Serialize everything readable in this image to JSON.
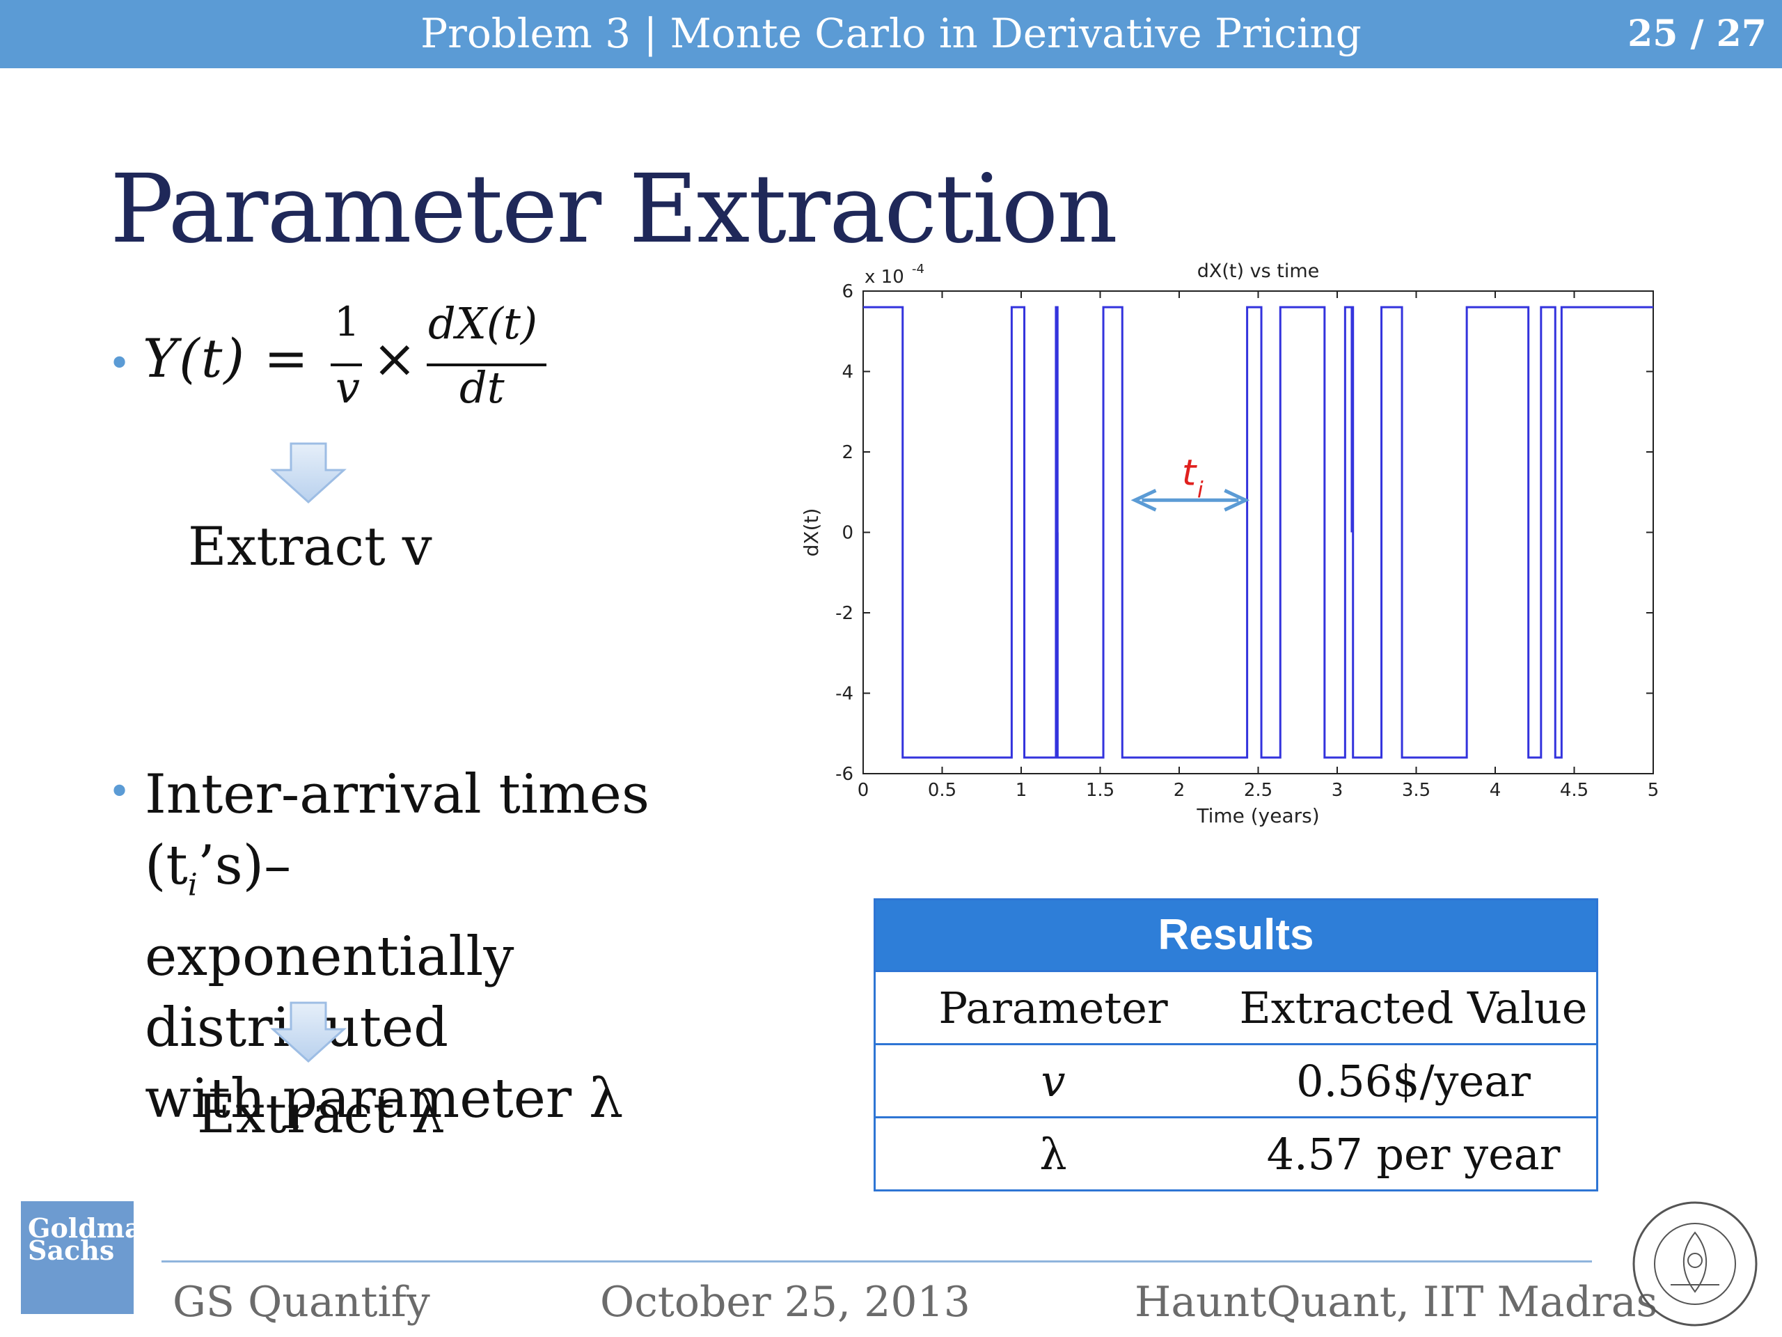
{
  "header": {
    "title": "Problem 3 | Monte Carlo in Derivative Pricing",
    "page": "25 / 27"
  },
  "slide_title": "Parameter Extraction",
  "bullets": [
    {
      "equation": {
        "lhs": "Y(t) =",
        "num1": "1",
        "den1": "v",
        "times": "×",
        "num2": "dX(t)",
        "den2": "dt"
      },
      "result": "Extract v"
    },
    {
      "text_line1": "Inter-arrival times (t",
      "text_sub": "i",
      "text_line1_end": "’s)–",
      "text_line2": "exponentially distributed",
      "text_line3": "with parameter λ",
      "result": "Extract λ"
    }
  ],
  "chart_data": {
    "type": "line",
    "title": "dX(t) vs time",
    "xlabel": "Time (years)",
    "ylabel": "dX(t)",
    "y_scale_label": "x 10",
    "y_scale_exp": "-4",
    "xlim": [
      0,
      5
    ],
    "ylim": [
      -6,
      6
    ],
    "xticks": [
      "0",
      "0.5",
      "1",
      "1.5",
      "2",
      "2.5",
      "3",
      "3.5",
      "4",
      "4.5",
      "5"
    ],
    "yticks": [
      "-6",
      "-4",
      "-2",
      "0",
      "2",
      "4",
      "6"
    ],
    "annotation": {
      "label": "t",
      "sub": "i"
    },
    "series": [
      {
        "x": [
          0,
          0.25,
          0.25,
          0.94,
          0.94,
          1.02,
          1.02,
          1.22,
          1.22,
          1.23,
          1.23,
          1.52,
          1.52,
          1.64,
          1.64,
          2.43,
          2.43,
          2.52,
          2.52,
          2.64,
          2.64,
          2.92,
          2.92,
          3.05,
          3.05,
          3.1,
          3.1,
          3.28,
          3.28,
          3.41,
          3.41,
          3.82,
          3.82,
          4.21,
          4.21,
          4.29,
          4.29,
          4.38,
          4.38,
          4.42,
          4.42,
          5
        ],
        "y": [
          5.6,
          5.6,
          -5.6,
          -5.6,
          5.6,
          5.6,
          -5.6,
          -5.6,
          5.6,
          5.6,
          -5.6,
          -5.6,
          5.6,
          5.6,
          -5.6,
          -5.6,
          5.6,
          5.6,
          -5.6,
          -5.6,
          5.6,
          5.6,
          -5.6,
          -5.6,
          5.6,
          5.6,
          -5.6,
          -5.6,
          5.6,
          5.6,
          -5.6,
          -5.6,
          5.6,
          5.6,
          -5.6,
          -5.6,
          5.6,
          5.6,
          -5.6,
          -5.6,
          5.6,
          5.6
        ]
      }
    ],
    "color": "#3333dd"
  },
  "results": {
    "title": "Results",
    "headers": [
      "Parameter",
      "Extracted Value"
    ],
    "rows": [
      [
        "v",
        "0.56$/year"
      ],
      [
        "λ",
        "4.57 per year"
      ]
    ]
  },
  "logo_text": [
    "Goldman",
    "Sachs"
  ],
  "footer": {
    "left": "GS Quantify",
    "center": "October 25, 2013",
    "right": "HauntQuant, IIT Madras"
  }
}
